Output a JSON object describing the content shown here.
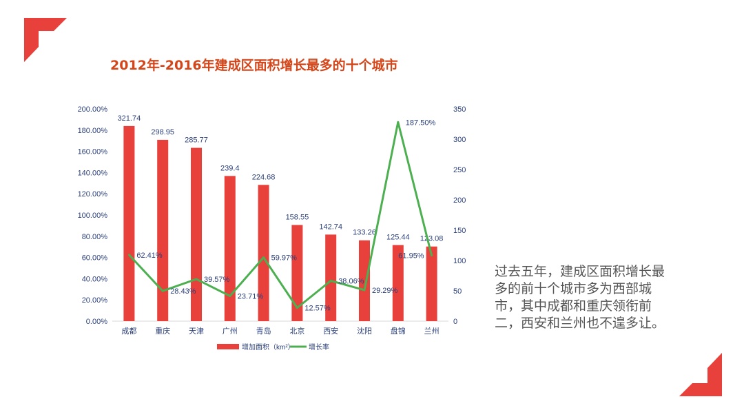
{
  "title": "2012年-2016年建成区面积增长最多的十个城市",
  "side_text": "过去五年，建成区面积增长最多的前十个城市多为西部城市，其中成都和重庆领衔前二，西安和兰州也不遑多让。",
  "colors": {
    "accent": "#e8403a",
    "title": "#d4461a",
    "bar": "#e8403a",
    "line": "#4caf50",
    "axis_text": "#2a3f7a"
  },
  "chart_data": {
    "type": "bar+line",
    "categories": [
      "成都",
      "重庆",
      "天津",
      "广州",
      "青岛",
      "北京",
      "西安",
      "沈阳",
      "盘锦",
      "兰州"
    ],
    "series": [
      {
        "name": "增加面积（km²）",
        "type": "bar",
        "axis": "right",
        "values": [
          321.74,
          298.95,
          285.77,
          239.4,
          224.68,
          158.55,
          142.74,
          133.26,
          125.44,
          123.08
        ],
        "labels": [
          "321.74",
          "298.95",
          "285.77",
          "239.4",
          "224.68",
          "158.55",
          "142.74",
          "133.26",
          "125.44",
          "123.08"
        ]
      },
      {
        "name": "增长率",
        "type": "line",
        "axis": "left",
        "values": [
          62.41,
          28.43,
          39.57,
          23.71,
          59.97,
          12.57,
          38.06,
          29.29,
          187.5,
          61.95
        ],
        "labels": [
          "62.41%",
          "28.43%",
          "39.57%",
          "23.71%",
          "59.97%",
          "12.57%",
          "38.06%",
          "29.29%",
          "187.50%",
          "61.95%"
        ]
      }
    ],
    "left_axis": {
      "range": [
        0,
        200
      ],
      "ticks": [
        "0.00%",
        "20.00%",
        "40.00%",
        "60.00%",
        "80.00%",
        "100.00%",
        "120.00%",
        "140.00%",
        "160.00%",
        "180.00%",
        "200.00%"
      ]
    },
    "right_axis": {
      "range": [
        0,
        350
      ],
      "ticks": [
        "0",
        "50",
        "100",
        "150",
        "200",
        "250",
        "300",
        "350"
      ]
    },
    "grid": false,
    "legend": "bottom"
  }
}
